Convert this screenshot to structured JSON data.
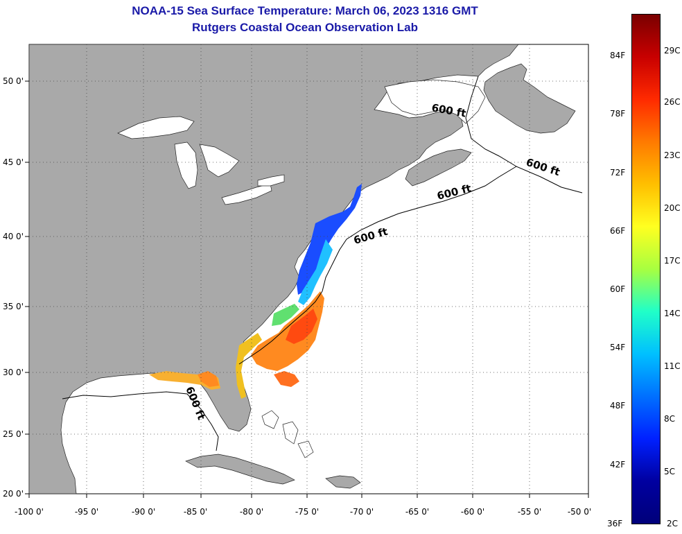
{
  "title": {
    "line1": "NOAA-15 Sea Surface Temperature:  March 06, 2023 1316 GMT",
    "line2": "Rutgers Coastal Ocean Observation Lab"
  },
  "map": {
    "lon_ticks": [
      "-100 0'",
      "-95 0'",
      "-90 0'",
      "-85 0'",
      "-80 0'",
      "-75 0'",
      "-70 0'",
      "-65 0'",
      "-60 0'",
      "-55 0'",
      "-50 0'"
    ],
    "lat_ticks": [
      "50 0'",
      "45 0'",
      "40 0'",
      "35 0'",
      "30 0'",
      "25 0'",
      "20 0'"
    ],
    "contour_labels": [
      "600 ft",
      "600 ft",
      "600 ft",
      "600 ft",
      "600 ft"
    ],
    "land_color": "#a9a9a9",
    "ocean_color": "#ffffff"
  },
  "colorbar": {
    "fahrenheit": [
      "84F",
      "78F",
      "72F",
      "66F",
      "60F",
      "54F",
      "48F",
      "42F",
      "36F"
    ],
    "celsius": [
      "29C",
      "26C",
      "23C",
      "20C",
      "17C",
      "14C",
      "11C",
      "8C",
      "5C",
      "2C"
    ],
    "colors": [
      "#7a0000",
      "#c80000",
      "#ff2a00",
      "#ff7a00",
      "#ffbf00",
      "#ffff20",
      "#a8ff40",
      "#20ffc8",
      "#00c0ff",
      "#0070ff",
      "#0020ff",
      "#0000a0",
      "#00007a"
    ]
  }
}
